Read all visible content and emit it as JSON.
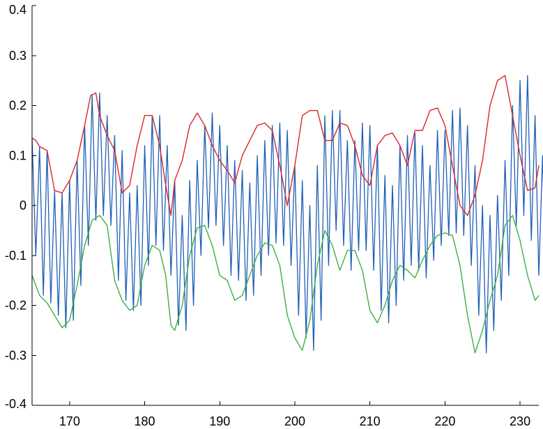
{
  "chart_data": {
    "type": "line",
    "title": "",
    "xlabel": "",
    "ylabel": "",
    "xlim": [
      165,
      232.5
    ],
    "ylim": [
      -0.4,
      0.4
    ],
    "grid": false,
    "legend": "none",
    "x_ticks": [
      170,
      180,
      190,
      200,
      210,
      220,
      230
    ],
    "x_tick_labels": [
      "170",
      "180",
      "190",
      "200",
      "210",
      "220",
      "230"
    ],
    "y_ticks": [
      0.4,
      0.3,
      0.2,
      0.1,
      0,
      -0.1,
      -0.2,
      -0.3,
      -0.4
    ],
    "y_tick_labels": [
      "0.4",
      "0.3",
      "0.2",
      "0.1",
      "0",
      "-0.1",
      "-0.2",
      "-0.3",
      "-0.4"
    ],
    "series": [
      {
        "role": "signal",
        "color": "#1f5fb4",
        "x_start": 165,
        "x_step": 0.5,
        "values": [
          0.135,
          -0.1,
          0.118,
          -0.18,
          0.11,
          -0.195,
          0.03,
          -0.22,
          0.025,
          -0.245,
          0.05,
          -0.23,
          0.09,
          -0.16,
          0.16,
          -0.08,
          0.22,
          -0.03,
          0.225,
          -0.02,
          0.18,
          -0.04,
          0.14,
          -0.15,
          0.11,
          -0.19,
          0.025,
          -0.21,
          0.04,
          -0.2,
          0.12,
          -0.12,
          0.18,
          -0.08,
          0.18,
          -0.09,
          0.12,
          -0.14,
          0.05,
          -0.24,
          -0.02,
          -0.25,
          0.05,
          -0.2,
          0.09,
          -0.1,
          0.16,
          -0.045,
          0.185,
          -0.04,
          0.16,
          -0.08,
          0.12,
          -0.14,
          0.09,
          -0.15,
          0.07,
          -0.19,
          0.045,
          -0.18,
          0.1,
          -0.14,
          0.13,
          -0.1,
          0.16,
          -0.075,
          0.165,
          -0.08,
          0.15,
          -0.12,
          0.08,
          -0.22,
          0.05,
          -0.265,
          0.0,
          -0.29,
          0.08,
          -0.23,
          0.18,
          -0.12,
          0.19,
          -0.05,
          0.19,
          -0.08,
          0.13,
          -0.13,
          0.13,
          -0.09,
          0.165,
          -0.09,
          0.16,
          -0.13,
          0.12,
          -0.21,
          0.06,
          -0.235,
          0.04,
          -0.2,
          0.12,
          -0.15,
          0.14,
          -0.12,
          0.145,
          -0.13,
          0.12,
          -0.145,
          0.08,
          -0.11,
          0.15,
          -0.08,
          0.15,
          -0.06,
          0.19,
          -0.055,
          0.195,
          -0.06,
          0.16,
          -0.12,
          0.08,
          -0.22,
          0.0,
          -0.295,
          -0.02,
          -0.25,
          0.02,
          -0.19,
          0.09,
          -0.14,
          0.2,
          -0.04,
          0.25,
          -0.02,
          0.26,
          -0.07,
          0.18,
          -0.14,
          0.1,
          -0.19,
          0.03,
          -0.21,
          0.035,
          -0.17,
          0.08,
          -0.12,
          0.17,
          -0.12,
          0.15,
          -0.12,
          0.13,
          -0.13
        ]
      },
      {
        "role": "upper-envelope",
        "color": "#d9262b",
        "x": [
          165,
          165.5,
          166,
          167,
          168,
          169,
          170,
          171,
          172,
          172.8,
          173.5,
          174,
          175,
          176,
          177,
          178,
          179,
          180,
          181,
          182,
          182.7,
          183.5,
          184,
          185,
          186,
          187,
          188,
          189,
          190,
          191,
          192,
          193,
          194,
          195,
          196,
          197,
          198,
          199,
          200,
          201,
          202,
          203,
          204,
          205,
          206,
          207,
          208,
          209,
          210,
          211,
          212,
          213,
          214,
          215,
          216,
          217,
          218,
          219,
          220,
          221,
          222,
          223,
          224,
          225,
          226,
          227,
          228,
          229,
          230,
          231,
          232,
          232.5
        ],
        "values": [
          0.135,
          0.13,
          0.118,
          0.11,
          0.03,
          0.025,
          0.05,
          0.09,
          0.16,
          0.22,
          0.225,
          0.18,
          0.14,
          0.11,
          0.025,
          0.04,
          0.12,
          0.18,
          0.18,
          0.12,
          0.05,
          -0.02,
          0.05,
          0.09,
          0.16,
          0.185,
          0.16,
          0.12,
          0.09,
          0.07,
          0.045,
          0.1,
          0.13,
          0.16,
          0.165,
          0.15,
          0.08,
          0.0,
          0.08,
          0.18,
          0.19,
          0.19,
          0.13,
          0.13,
          0.165,
          0.16,
          0.12,
          0.06,
          0.04,
          0.12,
          0.14,
          0.145,
          0.12,
          0.08,
          0.15,
          0.15,
          0.19,
          0.195,
          0.16,
          0.08,
          0.0,
          -0.02,
          0.02,
          0.09,
          0.2,
          0.25,
          0.26,
          0.18,
          0.1,
          0.03,
          0.035,
          0.08
        ]
      },
      {
        "role": "lower-envelope",
        "color": "#3cb043",
        "x": [
          165,
          166,
          167,
          168,
          169,
          170,
          171,
          172,
          173,
          174,
          175,
          176,
          177,
          178,
          179,
          180,
          181,
          182,
          182.8,
          183.5,
          184,
          185,
          186,
          187,
          188,
          189,
          190,
          191,
          192,
          193,
          194,
          195,
          196,
          197,
          198,
          199,
          200,
          201,
          202,
          203,
          204,
          205,
          206,
          207,
          208,
          209,
          210,
          211,
          212,
          213,
          214,
          215,
          216,
          217,
          218,
          219,
          220,
          221,
          222,
          223,
          224,
          225,
          226,
          227,
          228,
          229,
          230,
          231,
          232,
          232.5
        ],
        "values": [
          -0.14,
          -0.18,
          -0.195,
          -0.22,
          -0.245,
          -0.23,
          -0.16,
          -0.08,
          -0.03,
          -0.02,
          -0.04,
          -0.15,
          -0.19,
          -0.21,
          -0.2,
          -0.12,
          -0.08,
          -0.09,
          -0.14,
          -0.24,
          -0.25,
          -0.2,
          -0.1,
          -0.045,
          -0.04,
          -0.08,
          -0.14,
          -0.15,
          -0.19,
          -0.18,
          -0.14,
          -0.1,
          -0.075,
          -0.08,
          -0.12,
          -0.22,
          -0.265,
          -0.29,
          -0.23,
          -0.12,
          -0.05,
          -0.08,
          -0.13,
          -0.09,
          -0.09,
          -0.13,
          -0.21,
          -0.235,
          -0.2,
          -0.15,
          -0.12,
          -0.13,
          -0.145,
          -0.11,
          -0.08,
          -0.06,
          -0.055,
          -0.06,
          -0.12,
          -0.22,
          -0.295,
          -0.25,
          -0.19,
          -0.14,
          -0.04,
          -0.02,
          -0.07,
          -0.14,
          -0.19,
          -0.18
        ]
      }
    ]
  }
}
